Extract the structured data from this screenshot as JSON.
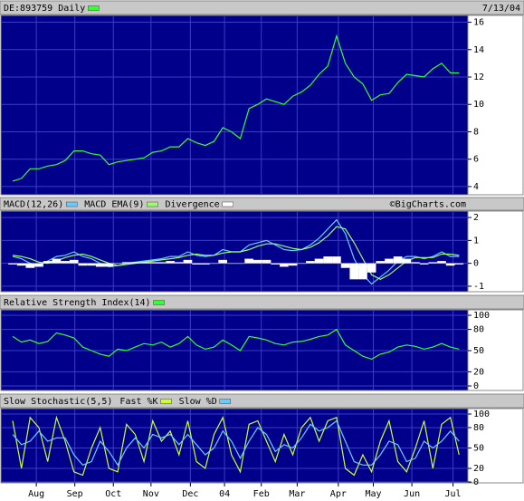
{
  "chart_data": [
    {
      "type": "line",
      "subtitle": "7/13/04",
      "series": [
        {
          "name": "DE:893759 Daily",
          "color": "#33ff33",
          "values": [
            4.4,
            4.6,
            5.3,
            5.3,
            5.5,
            5.6,
            5.9,
            6.6,
            6.6,
            6.4,
            6.3,
            5.6,
            5.8,
            5.9,
            6.0,
            6.1,
            6.5,
            6.6,
            6.9,
            6.9,
            7.5,
            7.2,
            7.0,
            7.3,
            8.3,
            8.0,
            7.5,
            9.7,
            10.0,
            10.4,
            10.2,
            10.0,
            10.6,
            10.9,
            11.4,
            12.2,
            12.8,
            15.0,
            13.0,
            12.0,
            11.5,
            10.3,
            10.7,
            10.8,
            11.6,
            12.2,
            12.1,
            12.0,
            12.6,
            13.0,
            12.3,
            12.3
          ]
        }
      ],
      "xlim": [
        0,
        52
      ],
      "ylim": [
        3.4,
        16.5
      ],
      "yticks": [
        4,
        6,
        8,
        10,
        12,
        14,
        16
      ],
      "grid": true
    },
    {
      "type": "line",
      "annotation": "©BigCharts.com",
      "series": [
        {
          "name": "MACD(12,26)",
          "color": "#66ccff",
          "values": [
            0.3,
            0.2,
            0.0,
            -0.1,
            0.1,
            0.3,
            0.35,
            0.5,
            0.3,
            0.2,
            0.0,
            -0.15,
            -0.1,
            0,
            0.05,
            0.1,
            0.15,
            0.2,
            0.3,
            0.3,
            0.5,
            0.35,
            0.3,
            0.35,
            0.6,
            0.5,
            0.5,
            0.8,
            0.9,
            1.0,
            0.8,
            0.6,
            0.55,
            0.6,
            0.8,
            1.1,
            1.5,
            1.9,
            1.3,
            0.2,
            -0.5,
            -0.9,
            -0.6,
            -0.3,
            0.1,
            0.3,
            0.3,
            0.2,
            0.3,
            0.5,
            0.3,
            0.3
          ]
        },
        {
          "name": "MACD EMA(9)",
          "color": "#99ff66",
          "values": [
            0.35,
            0.3,
            0.2,
            0.05,
            0.0,
            0.1,
            0.25,
            0.35,
            0.4,
            0.3,
            0.15,
            0.0,
            -0.1,
            -0.05,
            0,
            0.05,
            0.1,
            0.15,
            0.2,
            0.25,
            0.35,
            0.4,
            0.35,
            0.35,
            0.45,
            0.5,
            0.5,
            0.6,
            0.75,
            0.85,
            0.85,
            0.75,
            0.65,
            0.6,
            0.7,
            0.9,
            1.2,
            1.6,
            1.5,
            0.9,
            0.2,
            -0.5,
            -0.7,
            -0.5,
            -0.2,
            0.1,
            0.25,
            0.25,
            0.25,
            0.4,
            0.4,
            0.35
          ]
        },
        {
          "name": "Divergence",
          "color": "#ffffff",
          "type": "bar",
          "values": [
            -0.05,
            -0.1,
            -0.2,
            -0.15,
            0.1,
            0.2,
            0.1,
            0.15,
            -0.1,
            -0.1,
            -0.15,
            -0.15,
            0,
            0.05,
            0.05,
            0.05,
            0.05,
            0.05,
            0.1,
            0.05,
            0.15,
            -0.05,
            -0.05,
            0,
            0.15,
            0,
            0,
            0.2,
            0.15,
            0.15,
            -0.05,
            -0.15,
            -0.1,
            0,
            0.1,
            0.2,
            0.3,
            0.3,
            -0.2,
            -0.7,
            -0.7,
            -0.4,
            0.1,
            0.2,
            0.3,
            0.2,
            0.05,
            -0.05,
            0.05,
            0.1,
            -0.1,
            -0.05
          ]
        }
      ],
      "xlim": [
        0,
        52
      ],
      "ylim": [
        -1.24,
        2.28
      ],
      "yticks": [
        -1,
        0,
        1,
        2
      ],
      "grid": true
    },
    {
      "type": "line",
      "series": [
        {
          "name": "Relative Strength Index(14)",
          "color": "#33ff33",
          "values": [
            70,
            62,
            65,
            60,
            63,
            75,
            72,
            68,
            55,
            50,
            45,
            42,
            52,
            50,
            55,
            60,
            58,
            62,
            55,
            60,
            70,
            58,
            52,
            55,
            65,
            58,
            50,
            70,
            68,
            65,
            60,
            58,
            62,
            63,
            66,
            70,
            72,
            80,
            58,
            50,
            42,
            38,
            45,
            48,
            55,
            58,
            56,
            52,
            55,
            60,
            55,
            52
          ]
        }
      ],
      "xlim": [
        0,
        52
      ],
      "ylim": [
        -6.4,
        107.7
      ],
      "yticks": [
        0,
        20,
        50,
        80,
        100
      ],
      "grid": true
    },
    {
      "type": "line",
      "title": "Slow Stochastic(5,5)",
      "series": [
        {
          "name": "Fast %K",
          "color": "#ccff33",
          "values": [
            90,
            20,
            95,
            80,
            30,
            95,
            60,
            15,
            10,
            50,
            80,
            20,
            15,
            85,
            70,
            30,
            90,
            60,
            75,
            40,
            90,
            30,
            20,
            70,
            95,
            40,
            15,
            85,
            90,
            60,
            30,
            70,
            40,
            80,
            95,
            60,
            90,
            95,
            20,
            10,
            40,
            15,
            60,
            90,
            30,
            15,
            50,
            90,
            20,
            85,
            95,
            40
          ]
        },
        {
          "name": "Slow %D",
          "color": "#66ccff",
          "values": [
            70,
            55,
            60,
            75,
            60,
            65,
            65,
            40,
            25,
            30,
            60,
            45,
            25,
            50,
            65,
            50,
            70,
            65,
            70,
            55,
            70,
            55,
            40,
            50,
            75,
            60,
            35,
            60,
            80,
            70,
            45,
            55,
            50,
            65,
            85,
            75,
            80,
            90,
            60,
            30,
            25,
            25,
            40,
            60,
            55,
            30,
            35,
            60,
            50,
            60,
            75,
            60
          ]
        }
      ],
      "xlim": [
        0,
        52
      ],
      "ylim": [
        -1.3,
        108
      ],
      "yticks": [
        0,
        20,
        50,
        80,
        100
      ],
      "grid": true,
      "xticks": [
        {
          "value": 2.7,
          "label": "Aug"
        },
        {
          "value": 7.1,
          "label": "Sep"
        },
        {
          "value": 11.5,
          "label": "Oct"
        },
        {
          "value": 15.8,
          "label": "Nov"
        },
        {
          "value": 20.3,
          "label": "Dec"
        },
        {
          "value": 24.2,
          "label": "04"
        },
        {
          "value": 28.4,
          "label": "Feb"
        },
        {
          "value": 32.5,
          "label": "Mar"
        },
        {
          "value": 37.2,
          "label": "Apr"
        },
        {
          "value": 41.2,
          "label": "May"
        },
        {
          "value": 45.6,
          "label": "Jun"
        },
        {
          "value": 50.3,
          "label": "Jul"
        }
      ]
    }
  ]
}
